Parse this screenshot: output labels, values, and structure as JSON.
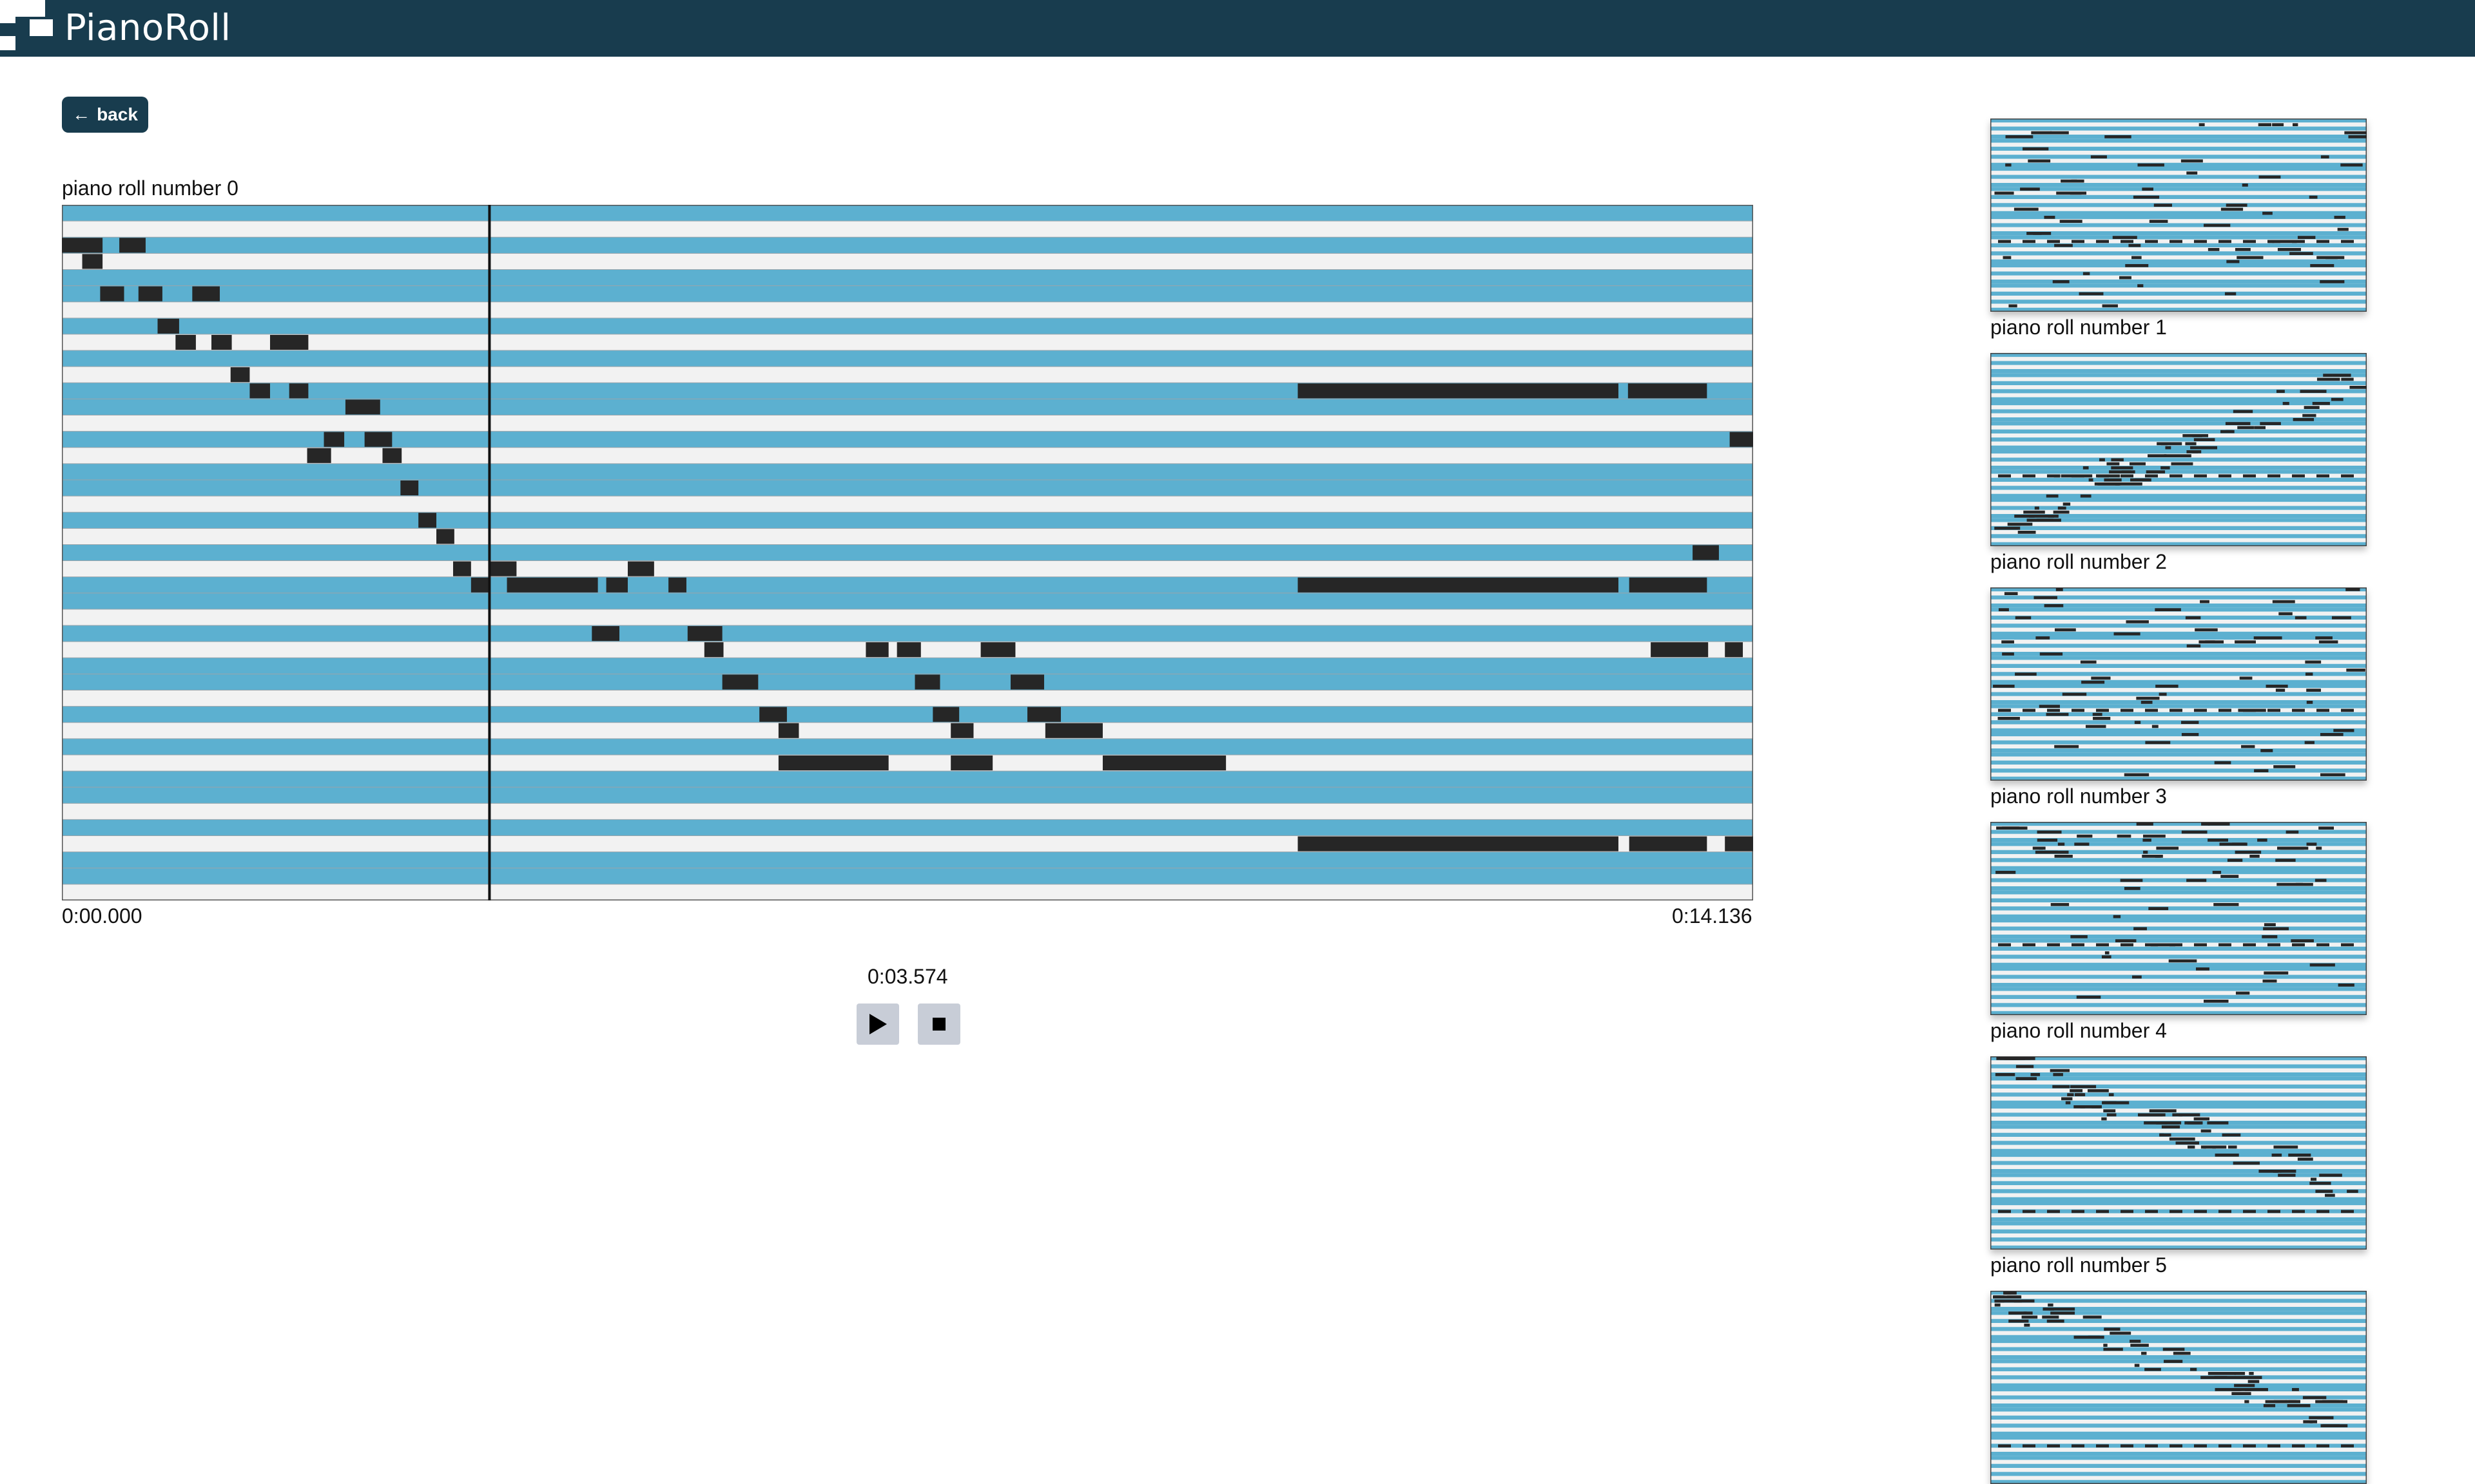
{
  "app": {
    "title": "PianoRoll"
  },
  "nav": {
    "back_label": "back"
  },
  "main_roll": {
    "title": "piano roll number 0",
    "time_start": "0:00.000",
    "time_end": "0:14.136",
    "current_time": "0:03.574",
    "duration_seconds": 14.136,
    "playhead_seconds": 3.574,
    "rows": 43,
    "notes": [
      [
        2,
        0.0,
        0.34
      ],
      [
        2,
        0.48,
        0.7
      ],
      [
        3,
        0.17,
        0.34
      ],
      [
        5,
        0.32,
        0.52
      ],
      [
        5,
        0.64,
        0.84
      ],
      [
        5,
        1.09,
        1.32
      ],
      [
        7,
        0.8,
        0.98
      ],
      [
        8,
        0.95,
        1.12
      ],
      [
        8,
        1.25,
        1.42
      ],
      [
        8,
        1.74,
        2.06
      ],
      [
        10,
        1.41,
        1.57
      ],
      [
        11,
        1.57,
        1.74
      ],
      [
        11,
        1.9,
        2.06
      ],
      [
        11,
        10.33,
        13.01
      ],
      [
        11,
        13.09,
        13.75
      ],
      [
        12,
        2.37,
        2.66
      ],
      [
        14,
        2.19,
        2.36
      ],
      [
        14,
        2.53,
        2.76
      ],
      [
        14,
        13.94,
        14.14
      ],
      [
        15,
        2.05,
        2.25
      ],
      [
        15,
        2.68,
        2.84
      ],
      [
        17,
        2.83,
        2.98
      ],
      [
        19,
        2.98,
        3.13
      ],
      [
        20,
        3.13,
        3.28
      ],
      [
        21,
        13.63,
        13.85
      ],
      [
        22,
        3.27,
        3.42
      ],
      [
        22,
        3.58,
        3.8
      ],
      [
        22,
        4.73,
        4.95
      ],
      [
        23,
        3.42,
        3.58
      ],
      [
        23,
        3.72,
        4.48
      ],
      [
        23,
        4.55,
        4.73
      ],
      [
        23,
        5.07,
        5.22
      ],
      [
        23,
        10.33,
        13.01
      ],
      [
        23,
        13.1,
        13.75
      ],
      [
        26,
        4.43,
        4.66
      ],
      [
        26,
        5.23,
        5.52
      ],
      [
        27,
        5.37,
        5.53
      ],
      [
        27,
        6.72,
        6.91
      ],
      [
        27,
        6.98,
        7.18
      ],
      [
        27,
        7.68,
        7.97
      ],
      [
        27,
        13.28,
        13.76
      ],
      [
        27,
        13.9,
        14.05
      ],
      [
        29,
        5.52,
        5.82
      ],
      [
        29,
        7.13,
        7.34
      ],
      [
        29,
        7.93,
        8.21
      ],
      [
        31,
        5.83,
        6.06
      ],
      [
        31,
        7.28,
        7.5
      ],
      [
        31,
        8.07,
        8.35
      ],
      [
        32,
        5.99,
        6.16
      ],
      [
        32,
        7.43,
        7.62
      ],
      [
        32,
        8.22,
        8.7
      ],
      [
        34,
        5.99,
        6.91
      ],
      [
        34,
        7.43,
        7.78
      ],
      [
        34,
        8.7,
        9.73
      ],
      [
        39,
        10.33,
        13.01
      ],
      [
        39,
        13.1,
        13.75
      ],
      [
        39,
        13.9,
        14.14
      ]
    ]
  },
  "colors": {
    "header": "#183c4e",
    "lane_blue": "#5cb0d0",
    "lane_light": "#f2f2f2",
    "note": "#262626",
    "playhead": "#111111"
  },
  "thumbnails": [
    {
      "label": "piano roll number 1",
      "seed": 11,
      "mode": "flat"
    },
    {
      "label": "piano roll number 2",
      "seed": 23,
      "mode": "rise"
    },
    {
      "label": "piano roll number 3",
      "seed": 37,
      "mode": "flat"
    },
    {
      "label": "piano roll number 4",
      "seed": 41,
      "mode": "top"
    },
    {
      "label": "piano roll number 5",
      "seed": 59,
      "mode": "fall"
    },
    {
      "label": "",
      "seed": 67,
      "mode": "fall"
    }
  ]
}
